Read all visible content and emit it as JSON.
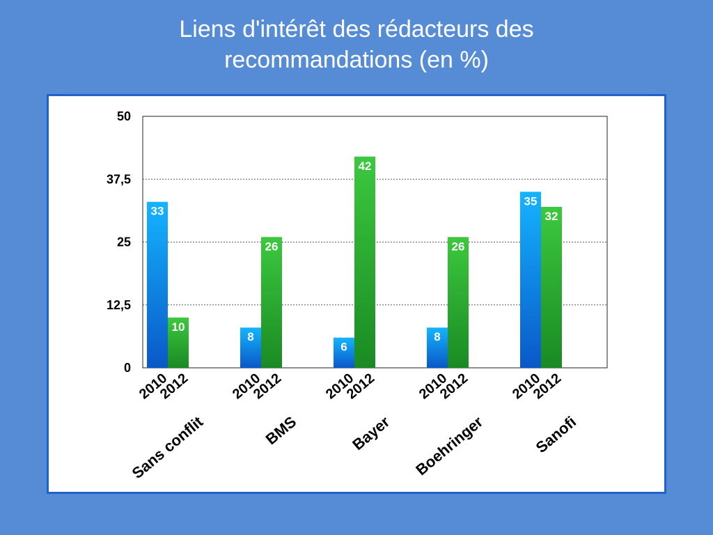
{
  "slide": {
    "title_line1": "Liens d'intérêt des rédacteurs des",
    "title_line2": "recommandations (en %)"
  },
  "colors": {
    "background": "#568cd6",
    "frame_border": "#1d63c9",
    "series_2010": "#1b8ee8",
    "series_2012": "#32b83a"
  },
  "chart_data": {
    "type": "bar",
    "title": "Liens d'intérêt des rédacteurs des recommandations (en %)",
    "categories": [
      "Sans conflit",
      "BMS",
      "Bayer",
      "Boehringer",
      "Sanofi"
    ],
    "series": [
      {
        "name": "2010",
        "values": [
          33,
          8,
          6,
          8,
          35
        ]
      },
      {
        "name": "2012",
        "values": [
          10,
          26,
          42,
          26,
          32
        ]
      }
    ],
    "ylim": [
      0,
      50
    ],
    "yticks": [
      "0",
      "12,5",
      "25",
      "37,5",
      "50"
    ],
    "ytick_values": [
      0,
      12.5,
      25,
      37.5,
      50
    ],
    "grid": true,
    "legend": "none",
    "xlabel": "",
    "ylabel": ""
  }
}
